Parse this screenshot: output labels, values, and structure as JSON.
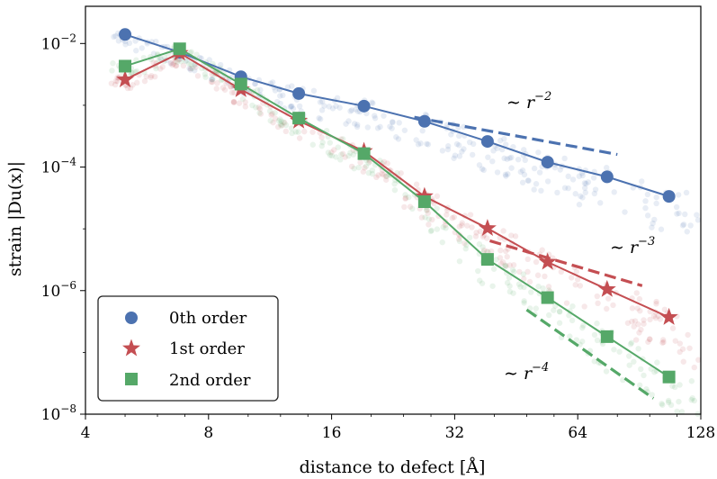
{
  "chart_data": {
    "type": "line",
    "xscale": "log2",
    "yscale": "log10",
    "xlabel": "distance to defect [Å]",
    "ylabel": "strain |Du(x)|",
    "xlim": [
      4,
      128
    ],
    "ylim": [
      1e-08,
      0.04
    ],
    "xticks": [
      4,
      8,
      16,
      32,
      64,
      128
    ],
    "xtick_labels": [
      "4",
      "8",
      "16",
      "32",
      "64",
      "128"
    ],
    "yticks": [
      1e-08,
      1e-06,
      0.0001,
      0.01
    ],
    "ytick_labels": [
      {
        "base": "10",
        "exp": "−8"
      },
      {
        "base": "10",
        "exp": "−6"
      },
      {
        "base": "10",
        "exp": "−4"
      },
      {
        "base": "10",
        "exp": "−2"
      }
    ],
    "legend_position": "lower-left",
    "series": [
      {
        "name": "0th order",
        "color": "#4c72b0",
        "marker": "circle",
        "x": [
          5.0,
          6.8,
          9.6,
          13.3,
          19.2,
          27.0,
          38.5,
          54.0,
          75.5,
          107.0
        ],
        "y": [
          0.014,
          0.0072,
          0.0029,
          0.00155,
          0.00097,
          0.00055,
          0.00026,
          0.00012,
          6.95e-05,
          3.35e-05
        ]
      },
      {
        "name": "1st order",
        "color": "#c44e52",
        "marker": "star",
        "x": [
          5.0,
          6.8,
          9.6,
          13.3,
          19.2,
          27.0,
          38.5,
          54.0,
          75.5,
          107.0
        ],
        "y": [
          0.0026,
          0.007,
          0.0018,
          0.00056,
          0.00018,
          3.35e-05,
          1.02e-05,
          2.9e-06,
          1.05e-06,
          3.7e-07
        ]
      },
      {
        "name": "2nd order",
        "color": "#55a868",
        "marker": "square",
        "x": [
          5.0,
          6.8,
          9.6,
          13.3,
          19.2,
          27.0,
          38.5,
          54.0,
          75.5,
          107.0
        ],
        "y": [
          0.0043,
          0.0082,
          0.0022,
          0.00062,
          0.000165,
          2.75e-05,
          3.2e-06,
          7.7e-07,
          1.8e-07,
          4e-08
        ]
      }
    ],
    "reference_lines": [
      {
        "label": "∼ r",
        "exp": "−2",
        "color": "#4c72b0",
        "x": [
          25.5,
          80.0
        ],
        "y": [
          0.00064,
          0.00016
        ]
      },
      {
        "label": "∼ r",
        "exp": "−3",
        "color": "#c44e52",
        "x": [
          39.0,
          92.0
        ],
        "y": [
          6.4e-06,
          1.2e-06
        ]
      },
      {
        "label": "∼ r",
        "exp": "−4",
        "color": "#55a868",
        "x": [
          48.0,
          98.0
        ],
        "y": [
          4.9e-07,
          1.8e-08
        ]
      }
    ],
    "background_scatter": true
  }
}
